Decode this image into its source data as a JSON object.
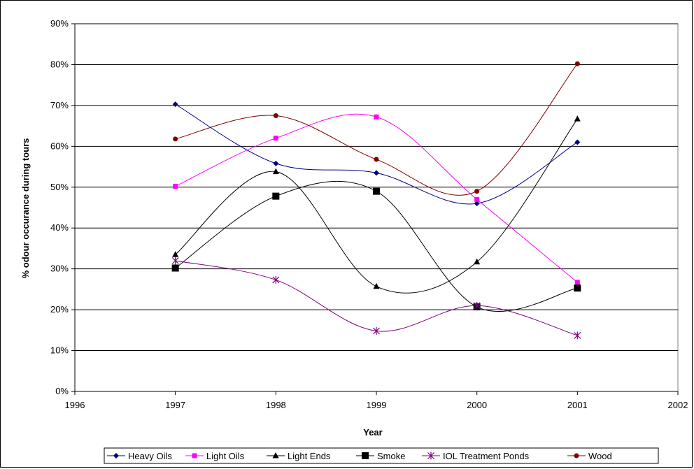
{
  "chart_data": {
    "type": "line",
    "title": "",
    "xlabel": "Year",
    "ylabel": "% odour occurance during tours",
    "xlim": [
      1996,
      2002
    ],
    "ylim": [
      0,
      90
    ],
    "x_ticks": [
      "1996",
      "1997",
      "1998",
      "1999",
      "2000",
      "2001",
      "2002"
    ],
    "y_ticks": [
      "0%",
      "10%",
      "20%",
      "30%",
      "40%",
      "50%",
      "60%",
      "70%",
      "80%",
      "90%"
    ],
    "grid": "horizontal",
    "smoothed": true,
    "legend_position": "bottom",
    "x": [
      1997,
      1998,
      1999,
      2000,
      2001
    ],
    "series": [
      {
        "name": "Heavy Oils",
        "values": [
          70.3,
          55.8,
          53.5,
          46.0,
          61.0
        ],
        "color": "#000080",
        "marker": "diamond"
      },
      {
        "name": "Light Oils",
        "values": [
          50.2,
          62.0,
          67.2,
          47.0,
          26.7
        ],
        "color": "#ff00ff",
        "marker": "square"
      },
      {
        "name": "Light Ends",
        "values": [
          33.5,
          53.8,
          25.7,
          31.7,
          66.7
        ],
        "color": "#000000",
        "marker": "triangle"
      },
      {
        "name": "Smoke",
        "values": [
          30.2,
          47.8,
          49.0,
          20.7,
          25.3
        ],
        "color": "#000000",
        "marker": "big-square"
      },
      {
        "name": "IOL Treatment Ponds",
        "values": [
          32.0,
          27.3,
          14.8,
          21.0,
          13.7
        ],
        "color": "#800080",
        "marker": "star"
      },
      {
        "name": "Wood",
        "values": [
          61.8,
          67.5,
          56.8,
          49.0,
          80.2
        ],
        "color": "#800000",
        "marker": "circle"
      }
    ]
  }
}
